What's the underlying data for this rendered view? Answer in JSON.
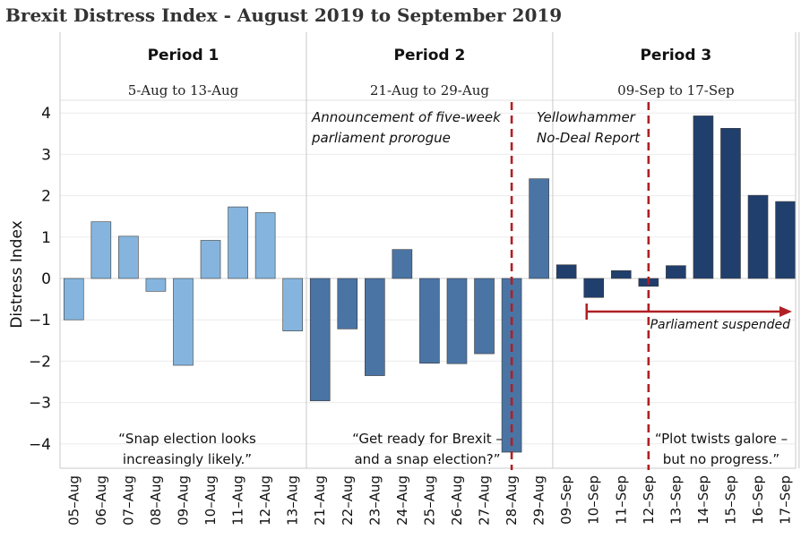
{
  "chart_data": {
    "type": "bar",
    "title": "Brexit Distress Index - August 2019 to September 2019",
    "ylabel": "Distress Index",
    "xlabel": "",
    "ylim": [
      -4.5,
      4.35
    ],
    "yticks": [
      4,
      3,
      2,
      1,
      0,
      -1,
      -2,
      -3,
      -4
    ],
    "ytick_labels": [
      "4",
      "3",
      "2",
      "1",
      "0",
      "−1",
      "−2",
      "−3",
      "−4"
    ],
    "grid": true,
    "periods": [
      {
        "name": "Period 1",
        "range": "5-Aug to 13-Aug",
        "color": "#85b5de"
      },
      {
        "name": "Period 2",
        "range": "21-Aug to 29-Aug",
        "color": "#4a74a4"
      },
      {
        "name": "Period 3",
        "range": "09-Sep to 17-Sep",
        "color": "#213f6d"
      }
    ],
    "series": [
      {
        "name": "Period 1",
        "categories": [
          "05–Aug",
          "06–Aug",
          "07–Aug",
          "08–Aug",
          "09–Aug",
          "10–Aug",
          "11–Aug",
          "12–Aug",
          "13–Aug"
        ],
        "values": [
          -1.0,
          1.37,
          1.02,
          -0.31,
          -2.1,
          0.92,
          1.73,
          1.59,
          -1.27
        ]
      },
      {
        "name": "Period 2",
        "categories": [
          "21–Aug",
          "22–Aug",
          "23–Aug",
          "24–Aug",
          "25–Aug",
          "26–Aug",
          "27–Aug",
          "28–Aug",
          "29–Aug"
        ],
        "values": [
          -2.96,
          -1.22,
          -2.35,
          0.7,
          -2.05,
          -2.06,
          -1.82,
          -4.2,
          2.41
        ]
      },
      {
        "name": "Period 3",
        "categories": [
          "09–Sep",
          "10–Sep",
          "11–Sep",
          "12–Sep",
          "13–Sep",
          "14–Sep",
          "15–Sep",
          "16–Sep",
          "17–Sep"
        ],
        "values": [
          0.33,
          -0.46,
          0.19,
          -0.19,
          0.31,
          3.93,
          3.63,
          2.01,
          1.86
        ]
      }
    ],
    "event_lines": [
      {
        "category": "28–Aug",
        "lines": [
          "Announcement of five-week",
          "parliament prorogue"
        ],
        "color": "#b01f24"
      },
      {
        "category": "12–Sep",
        "lines": [
          "Yellowhammer",
          "No-Deal Report"
        ],
        "color": "#b01f24"
      }
    ],
    "suspension": {
      "start_category": "10–Sep",
      "label": "Parliament suspended",
      "color": "#b01f24"
    },
    "quotes": [
      {
        "lines": [
          "“Snap election looks",
          "increasingly likely.”"
        ]
      },
      {
        "lines": [
          "“Get ready for Brexit –",
          "and a snap election?”"
        ]
      },
      {
        "lines": [
          "“Plot twists galore –",
          "but no progress.”"
        ]
      }
    ]
  }
}
